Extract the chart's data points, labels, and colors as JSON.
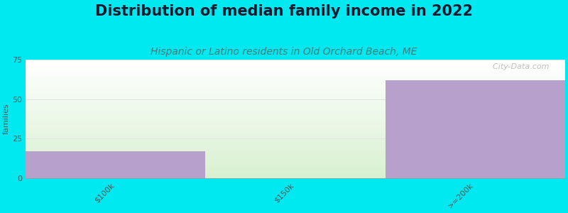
{
  "title": "Distribution of median family income in 2022",
  "subtitle": "Hispanic or Latino residents in Old Orchard Beach, ME",
  "categories": [
    "$100k",
    "$150k",
    ">=200k"
  ],
  "values": [
    17,
    0,
    62
  ],
  "bar_color": "#b8a0cc",
  "bg_color": "#00e8f0",
  "ylabel": "families",
  "ylim": [
    0,
    75
  ],
  "yticks": [
    0,
    25,
    50,
    75
  ],
  "title_fontsize": 15,
  "subtitle_fontsize": 10,
  "title_color": "#1a1a2e",
  "subtitle_color": "#4a7a7a",
  "watermark": "  City-Data.com",
  "grid_color": "#e0e0e0",
  "plot_bg_top": "#ffffff",
  "plot_bg_bottom": "#d8f0d0"
}
